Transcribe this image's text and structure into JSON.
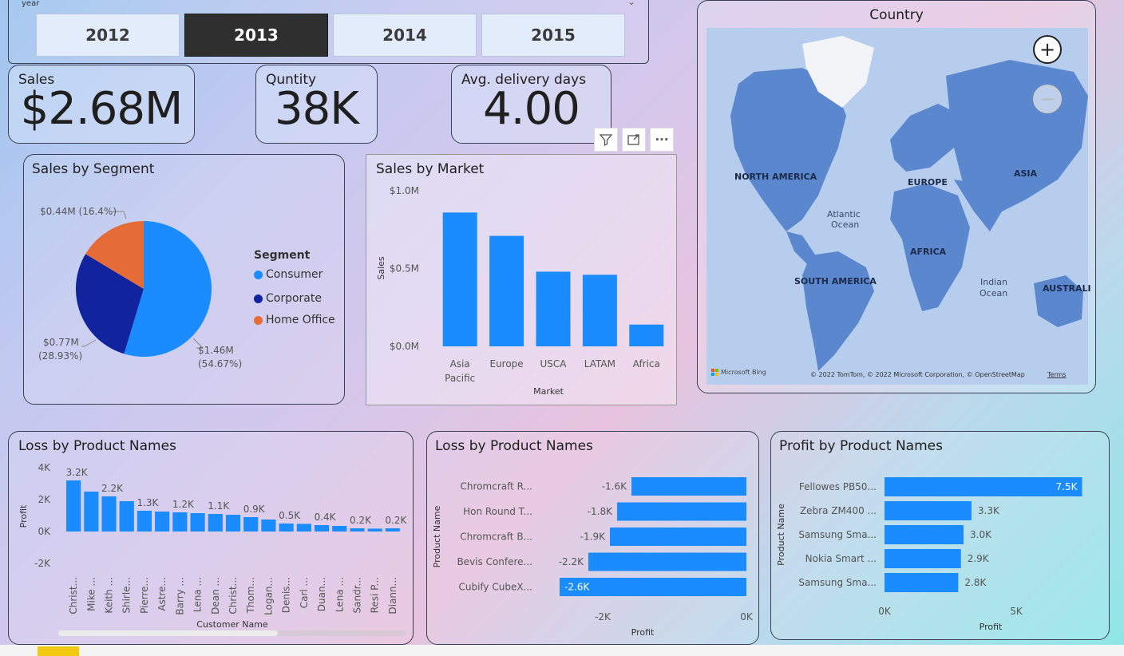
{
  "slicer": {
    "label": "year",
    "years": [
      "2012",
      "2013",
      "2014",
      "2015"
    ],
    "selected": "2013",
    "chevron": "chevron-down-icon"
  },
  "kpis": {
    "sales": {
      "label": "Sales",
      "value": "$2.68M"
    },
    "quantity": {
      "label": "Quntity",
      "value": "38K"
    },
    "delivery": {
      "label": "Avg. delivery days",
      "value": "4.00"
    }
  },
  "toolbar": {
    "icons": [
      "filter-icon",
      "focus-mode-icon",
      "more-options-icon"
    ],
    "more": "···"
  },
  "map": {
    "title": "Country",
    "zoom_in": "+",
    "zoom_out": "−",
    "labels": {
      "north_america": "NORTH AMERICA",
      "europe": "EUROPE",
      "asia": "ASIA",
      "atlantic1": "Atlantic",
      "atlantic2": "Ocean",
      "africa": "AFRICA",
      "south_america": "SOUTH AMERICA",
      "indian1": "Indian",
      "indian2": "Ocean",
      "australia": "AUSTRALI"
    },
    "brand": "Microsoft Bing",
    "attribution": "© 2022 TomTom, © 2022 Microsoft Corporation, © OpenStreetMap",
    "terms": "Terms"
  },
  "colors": {
    "bar": "#1a8cff",
    "consumer": "#1a8cff",
    "corporate": "#12239e",
    "home_office": "#e66c37"
  },
  "chart_data": [
    {
      "type": "pie",
      "title": "Sales by Segment",
      "legend_title": "Segment",
      "legend_placement": "right",
      "slices": [
        {
          "name": "Consumer",
          "value": 1.46,
          "pct": 54.67,
          "label1": "$1.46M",
          "label2": "(54.67%)"
        },
        {
          "name": "Corporate",
          "value": 0.77,
          "pct": 28.93,
          "label1": "$0.77M",
          "label2": "(28.93%)"
        },
        {
          "name": "Home Office",
          "value": 0.44,
          "pct": 16.4,
          "label1": "$0.44M (16.4%)",
          "label2": ""
        }
      ]
    },
    {
      "type": "bar",
      "title": "Sales by Market",
      "xlabel": "Market",
      "ylabel": "Sales",
      "categories": [
        "Asia Pacific",
        "Europe",
        "USCA",
        "LATAM",
        "Africa"
      ],
      "category_lines": [
        [
          "Asia",
          "Pacific"
        ],
        [
          "Europe"
        ],
        [
          "USCA"
        ],
        [
          "LATAM"
        ],
        [
          "Africa"
        ]
      ],
      "values": [
        0.86,
        0.71,
        0.48,
        0.46,
        0.14
      ],
      "ylim": [
        0,
        1.0
      ],
      "yticks": [
        0,
        0.5,
        1.0
      ],
      "ytick_labels": [
        "$0.0M",
        "$0.5M",
        "$1.0M"
      ]
    },
    {
      "type": "bar",
      "title": "Loss by Product Names",
      "xlabel": "Customer Name",
      "ylabel": "Profit",
      "categories": [
        "Christ...",
        "Mike ...",
        "Keith ...",
        "Shirle...",
        "Pierre...",
        "Astre...",
        "Barry ...",
        "Lena ...",
        "Dean ...",
        "Christ...",
        "Thom...",
        "Logan...",
        "Denis...",
        "Carl ...",
        "Duan...",
        "Lena ...",
        "Sandr...",
        "Resi P...",
        "Diann..."
      ],
      "values": [
        3.2,
        2.5,
        2.2,
        1.9,
        1.3,
        1.25,
        1.2,
        1.15,
        1.1,
        1.05,
        0.9,
        0.75,
        0.5,
        0.48,
        0.4,
        0.35,
        0.2,
        0.18,
        0.2
      ],
      "data_labels": {
        "0": "3.2K",
        "2": "2.2K",
        "4": "1.3K",
        "6": "1.2K",
        "8": "1.1K",
        "10": "0.9K",
        "12": "0.5K",
        "14": "0.4K",
        "16": "0.2K",
        "18": "0.2K"
      },
      "ylim": [
        -2,
        4
      ],
      "yticks": [
        -2,
        0,
        2,
        4
      ],
      "ytick_labels": [
        "-2K",
        "0K",
        "2K",
        "4K"
      ]
    },
    {
      "type": "bar",
      "orientation": "horizontal",
      "title": "Loss by Product Names",
      "xlabel": "Profit",
      "ylabel": "Product Name",
      "categories": [
        "Chromcraft R...",
        "Hon Round T...",
        "Chromcraft B...",
        "Bevis Confere...",
        "Cubify CubeX..."
      ],
      "values": [
        -1.6,
        -1.8,
        -1.9,
        -2.2,
        -2.6
      ],
      "data_labels": [
        "-1.6K",
        "-1.8K",
        "-1.9K",
        "-2.2K",
        "-2.6K"
      ],
      "xlim": [
        -2.6,
        0
      ],
      "xticks": [
        -2,
        0
      ],
      "xtick_labels": [
        "-2K",
        "0K"
      ]
    },
    {
      "type": "bar",
      "orientation": "horizontal",
      "title": "Profit by Product Names",
      "xlabel": "Profit",
      "ylabel": "Product Name",
      "categories": [
        "Fellowes PB50...",
        "Zebra ZM400 ...",
        "Samsung Sma...",
        "Nokia Smart ...",
        "Samsung Sma..."
      ],
      "values": [
        7.5,
        3.3,
        3.0,
        2.9,
        2.8
      ],
      "data_labels": [
        "7.5K",
        "3.3K",
        "3.0K",
        "2.9K",
        "2.8K"
      ],
      "xlim": [
        0,
        7.5
      ],
      "xticks": [
        0,
        5
      ],
      "xtick_labels": [
        "0K",
        "5K"
      ]
    }
  ]
}
